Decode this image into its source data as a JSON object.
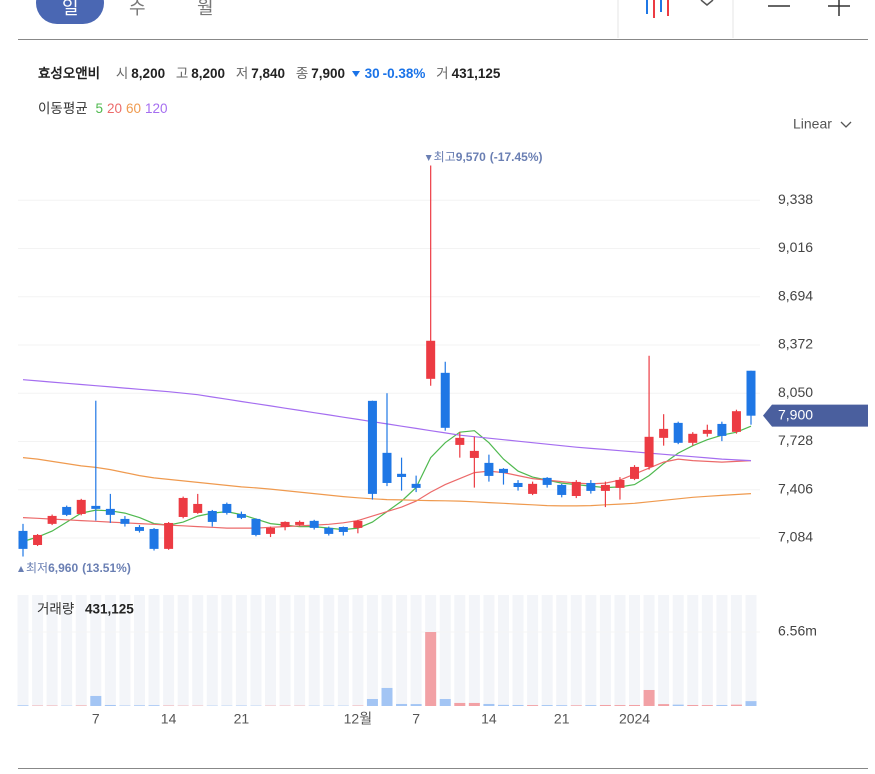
{
  "ui": {
    "tabs": [
      "일",
      "수",
      "월"
    ],
    "scale_mode": "Linear"
  },
  "header": {
    "name": "효성오앤비",
    "open_label": "시",
    "open": "8,200",
    "high_label": "고",
    "high": "8,200",
    "low_label": "저",
    "low": "7,840",
    "close_label": "종",
    "close": "7,900",
    "change": "30",
    "change_pct": "-0.38%",
    "volume_label": "거",
    "volume": "431,125"
  },
  "chart_data": [
    {
      "type": "candlestick",
      "legend_title": "이동평균",
      "categories": [
        null,
        null,
        null,
        null,
        null,
        "7",
        null,
        null,
        null,
        null,
        "14",
        null,
        null,
        null,
        null,
        "21",
        null,
        null,
        null,
        null,
        null,
        null,
        null,
        "12월",
        null,
        null,
        null,
        "7",
        null,
        null,
        null,
        null,
        "14",
        null,
        null,
        null,
        null,
        "21",
        null,
        null,
        null,
        null,
        "2024",
        null,
        null,
        null,
        null,
        null,
        null,
        null,
        null
      ],
      "open": [
        7131,
        7037,
        7178,
        7291,
        7244,
        7298,
        7278,
        7211,
        7157,
        7144,
        7011,
        7224,
        7251,
        7264,
        7311,
        7244,
        7211,
        7111,
        7157,
        7171,
        7198,
        7151,
        7157,
        7151,
        7999,
        7652,
        7512,
        7445,
        8146,
        8186,
        7705,
        7618,
        7585,
        7545,
        7451,
        7378,
        7485,
        7438,
        7364,
        7451,
        7398,
        7418,
        7478,
        7558,
        7752,
        7852,
        7719,
        7779,
        7845,
        7792,
        8200
      ],
      "high": [
        7178,
        7110,
        7240,
        7300,
        7345,
        8000,
        7378,
        7230,
        7170,
        7150,
        7190,
        7360,
        7378,
        7271,
        7320,
        7260,
        7215,
        7160,
        7195,
        7200,
        7205,
        7160,
        7160,
        7205,
        8000,
        8050,
        7620,
        7500,
        9570,
        8260,
        7790,
        7760,
        7640,
        7550,
        7470,
        7460,
        7490,
        7445,
        7470,
        7470,
        7460,
        7490,
        7570,
        8300,
        7910,
        7860,
        7790,
        7840,
        7860,
        7940,
        8200
      ],
      "low": [
        6960,
        7030,
        7170,
        7230,
        7235,
        7200,
        7184,
        7160,
        7120,
        7000,
        7005,
        7215,
        7245,
        7160,
        7240,
        7210,
        7095,
        7090,
        7135,
        7165,
        7140,
        7100,
        7100,
        7115,
        7340,
        7430,
        7400,
        7390,
        8100,
        7800,
        7620,
        7420,
        7460,
        7440,
        7400,
        7370,
        7420,
        7355,
        7350,
        7380,
        7290,
        7340,
        7470,
        7540,
        7700,
        7710,
        7700,
        7760,
        7730,
        7780,
        7840
      ],
      "close": [
        7011,
        7104,
        7231,
        7238,
        7338,
        7278,
        7238,
        7178,
        7131,
        7011,
        7184,
        7351,
        7311,
        7191,
        7251,
        7218,
        7104,
        7151,
        7191,
        7191,
        7151,
        7111,
        7124,
        7198,
        7378,
        7451,
        7491,
        7418,
        8400,
        7819,
        7752,
        7665,
        7498,
        7518,
        7424,
        7445,
        7438,
        7371,
        7458,
        7398,
        7438,
        7471,
        7558,
        7759,
        7812,
        7719,
        7779,
        7805,
        7765,
        7930,
        7900
      ],
      "up_color": "#ec3b43",
      "down_color": "#1f77e5",
      "series": [
        {
          "name": "5",
          "color": "#4fb94f",
          "values": [
            7060,
            7090,
            7130,
            7190,
            7250,
            7270,
            7265,
            7250,
            7220,
            7180,
            7170,
            7190,
            7230,
            7250,
            7260,
            7240,
            7210,
            7180,
            7170,
            7160,
            7160,
            7150,
            7140,
            7150,
            7190,
            7260,
            7330,
            7420,
            7620,
            7720,
            7790,
            7800,
            7720,
            7610,
            7530,
            7490,
            7470,
            7450,
            7440,
            7430,
            7420,
            7425,
            7440,
            7500,
            7580,
            7650,
            7700,
            7740,
            7770,
            7790,
            7830
          ]
        },
        {
          "name": "20",
          "color": "#ec6a6a",
          "values": [
            7220,
            7215,
            7210,
            7205,
            7200,
            7195,
            7190,
            7185,
            7180,
            7175,
            7170,
            7165,
            7160,
            7155,
            7150,
            7150,
            7150,
            7155,
            7160,
            7165,
            7170,
            7175,
            7185,
            7200,
            7230,
            7260,
            7290,
            7330,
            7390,
            7440,
            7480,
            7520,
            7530,
            7520,
            7500,
            7480,
            7470,
            7460,
            7450,
            7445,
            7450,
            7470,
            7510,
            7550,
            7590,
            7610,
            7600,
            7595,
            7590,
            7595,
            7600
          ]
        },
        {
          "name": "60",
          "color": "#ef9a4f",
          "values": [
            7620,
            7610,
            7595,
            7580,
            7565,
            7555,
            7540,
            7520,
            7500,
            7485,
            7475,
            7465,
            7455,
            7445,
            7435,
            7425,
            7418,
            7410,
            7400,
            7390,
            7380,
            7370,
            7360,
            7352,
            7345,
            7340,
            7338,
            7335,
            7333,
            7332,
            7330,
            7325,
            7320,
            7315,
            7310,
            7305,
            7300,
            7298,
            7298,
            7300,
            7305,
            7310,
            7315,
            7325,
            7335,
            7345,
            7355,
            7362,
            7368,
            7374,
            7380
          ]
        },
        {
          "name": "120",
          "color": "#a56ef0",
          "values": [
            8140,
            8132,
            8124,
            8116,
            8108,
            8100,
            8092,
            8084,
            8076,
            8068,
            8060,
            8050,
            8040,
            8025,
            8010,
            7995,
            7980,
            7965,
            7950,
            7935,
            7920,
            7905,
            7890,
            7875,
            7860,
            7845,
            7830,
            7815,
            7800,
            7785,
            7770,
            7760,
            7750,
            7740,
            7730,
            7720,
            7710,
            7700,
            7690,
            7682,
            7674,
            7666,
            7658,
            7650,
            7642,
            7634,
            7626,
            7618,
            7610,
            7605,
            7600
          ]
        }
      ],
      "ylim": [
        6800,
        9740
      ],
      "yticks": [
        {
          "value": 7084,
          "label": "7,084"
        },
        {
          "value": 7406,
          "label": "7,406"
        },
        {
          "value": 7728,
          "label": "7,728"
        },
        {
          "value": 8050,
          "label": "8,050"
        },
        {
          "value": 8372,
          "label": "8,372"
        },
        {
          "value": 8694,
          "label": "8,694"
        },
        {
          "value": 9016,
          "label": "9,016"
        },
        {
          "value": 9338,
          "label": "9,338"
        }
      ],
      "grid": true,
      "price_tag": {
        "value": 7900,
        "label": "7,900"
      },
      "high_note": {
        "label": "최고",
        "value": 9570,
        "value_label": "9,570",
        "change": "(-17.45%)"
      },
      "low_note": {
        "label": "최저",
        "value": 6960,
        "value_label": "6,960",
        "change": "(13.51%)"
      }
    },
    {
      "type": "bar",
      "title": "거래량",
      "title_value": "431,125",
      "values": [
        60000,
        40000,
        40000,
        30000,
        50000,
        890000,
        90000,
        40000,
        60000,
        70000,
        40000,
        30000,
        30000,
        30000,
        30000,
        40000,
        30000,
        30000,
        30000,
        30000,
        30000,
        30000,
        30000,
        40000,
        620000,
        1600000,
        180000,
        170000,
        6560000,
        620000,
        270000,
        270000,
        180000,
        100000,
        90000,
        80000,
        80000,
        70000,
        60000,
        80000,
        90000,
        80000,
        90000,
        1420000,
        170000,
        120000,
        90000,
        80000,
        90000,
        120000,
        431125
      ],
      "up_color": "#f2a1a5",
      "down_color": "#a3c5f4",
      "ylim": [
        0,
        9840000
      ],
      "yticks": [
        {
          "value": 6560000,
          "label": "6.56m"
        }
      ]
    }
  ]
}
